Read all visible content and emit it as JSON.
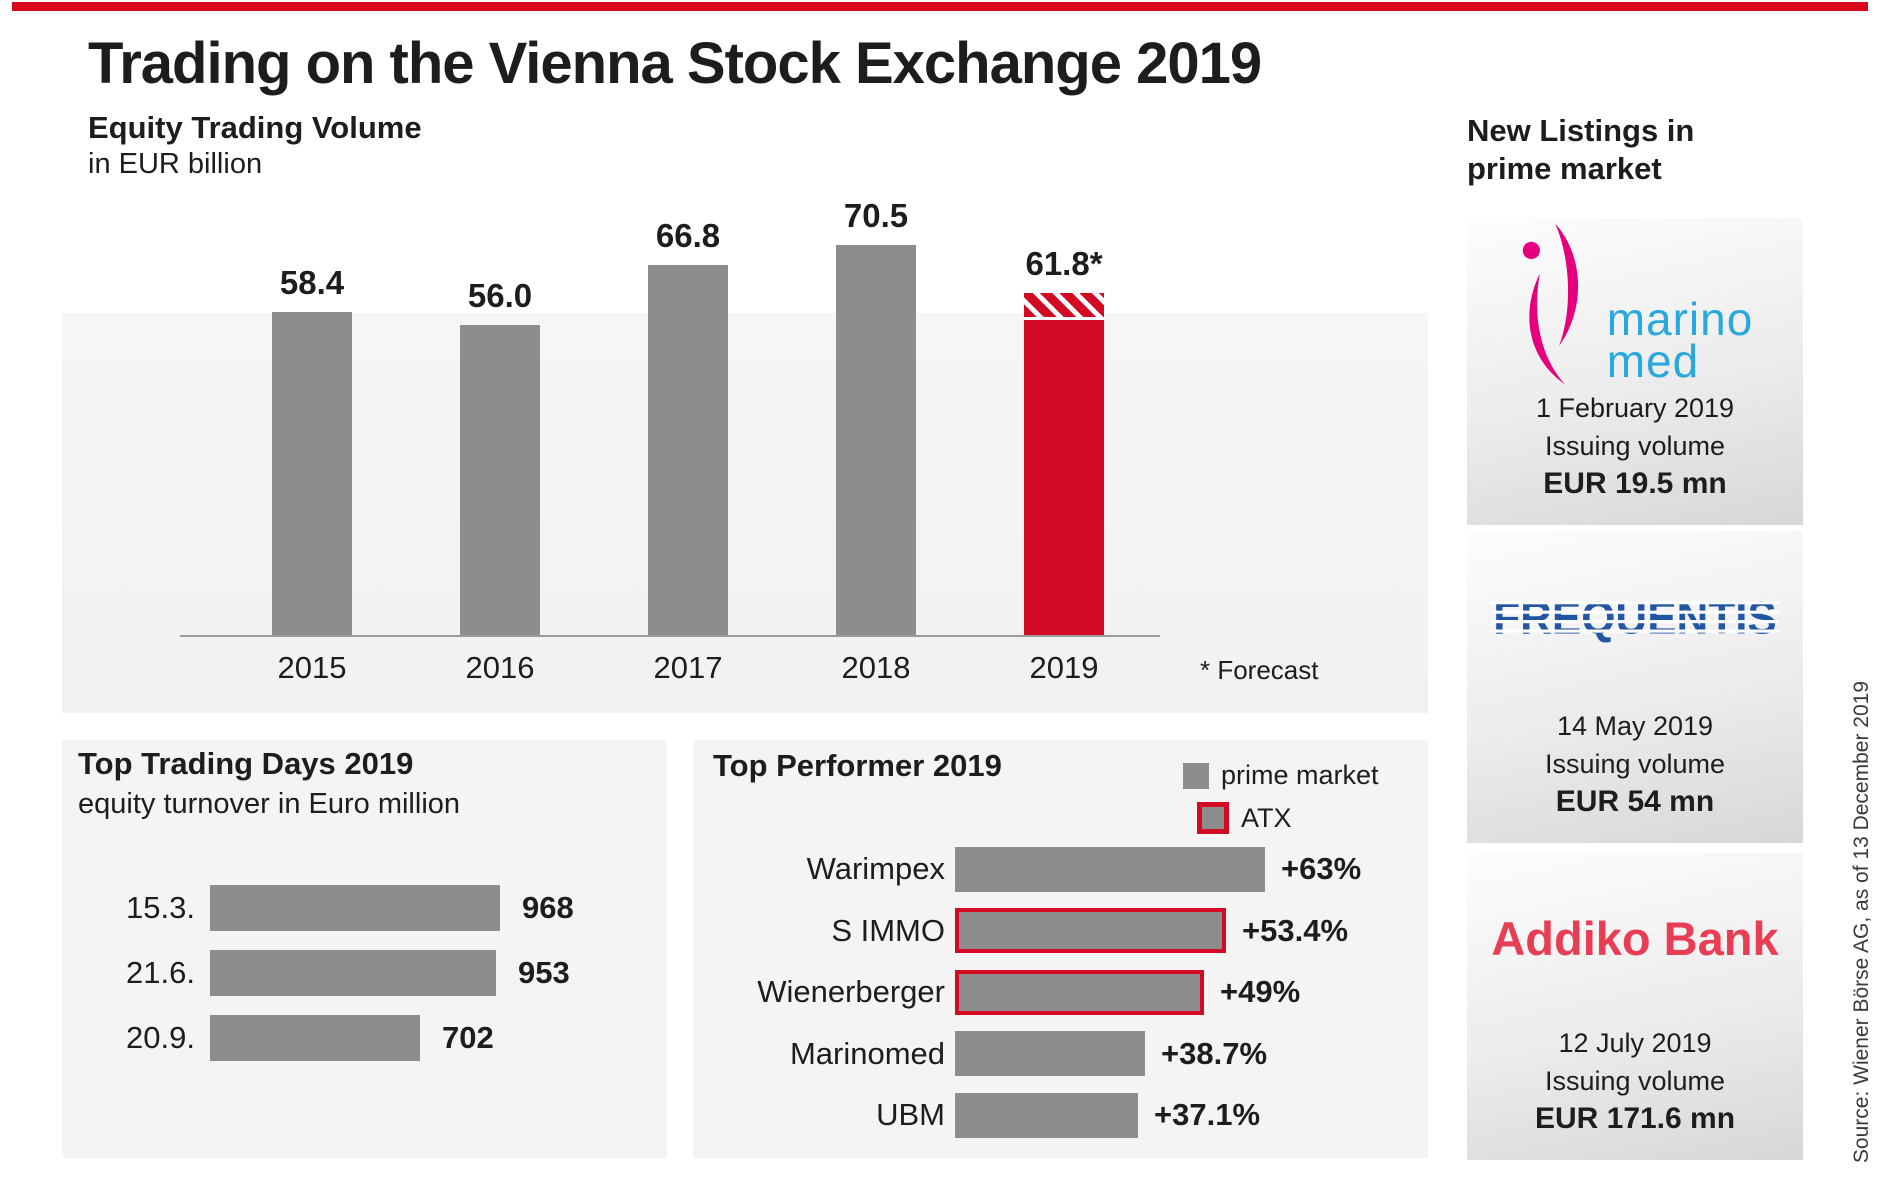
{
  "header": {
    "title": "Trading on the Vienna Stock Exchange 2019"
  },
  "colors": {
    "brand_red": "#d8091d",
    "forecast_bar_red": "#d20a23",
    "bar_gray": "#8d8d8d",
    "marinomed_magenta": "#e6007e",
    "marinomed_blue": "#29a8de",
    "frequentis_blue": "#2256a3",
    "addiko_red": "#e83e55"
  },
  "chart_data": [
    {
      "type": "bar",
      "title": "Equity Trading Volume",
      "subtitle": "in EUR billion",
      "categories": [
        "2015",
        "2016",
        "2017",
        "2018",
        "2019"
      ],
      "values": [
        58.4,
        56.0,
        66.8,
        70.5,
        61.8
      ],
      "value_labels": [
        "58.4",
        "56.0",
        "66.8",
        "70.5",
        "61.8*"
      ],
      "forecast_index": 4,
      "forecast_note": "* Forecast",
      "ylim": [
        0,
        70.5
      ],
      "grid": false,
      "legend_position": "none"
    },
    {
      "type": "bar",
      "orientation": "horizontal",
      "title": "Top Trading Days 2019",
      "subtitle": "equity turnover in Euro million",
      "categories": [
        "15.3.",
        "21.6.",
        "20.9."
      ],
      "values": [
        968,
        953,
        702
      ],
      "value_labels": [
        "968",
        "953",
        "702"
      ],
      "xlim": [
        0,
        968
      ],
      "grid": false
    },
    {
      "type": "bar",
      "orientation": "horizontal",
      "title": "Top Performer 2019",
      "categories": [
        "Warimpex",
        "S IMMO",
        "Wienerberger",
        "Marinomed",
        "UBM"
      ],
      "values": [
        63,
        53.4,
        49,
        38.7,
        37.1
      ],
      "value_labels": [
        "+63%",
        "+53.4%",
        "+49%",
        "+38.7%",
        "+37.1%"
      ],
      "atx_flags": [
        false,
        true,
        true,
        false,
        false
      ],
      "legend": [
        {
          "label": "prime market",
          "style": "gray"
        },
        {
          "label": "ATX",
          "style": "gray-red-border"
        }
      ],
      "xlim": [
        0,
        63
      ],
      "grid": false
    }
  ],
  "sidebar": {
    "heading_line1": "New Listings in",
    "heading_line2": "prime market",
    "listings": [
      {
        "company": "Marinomed",
        "logo_line1": "marino",
        "logo_line2": "med",
        "date": "1 February 2019",
        "issuing_label": "Issuing volume",
        "volume": "EUR 19.5 mn"
      },
      {
        "company": "Frequentis",
        "logo_text": "FREQUENTIS",
        "date": "14 May 2019",
        "issuing_label": "Issuing volume",
        "volume": "EUR 54 mn"
      },
      {
        "company": "Addiko Bank",
        "logo_text": "Addiko Bank",
        "date": "12 July 2019",
        "issuing_label": "Issuing volume",
        "volume": "EUR 171.6 mn"
      }
    ],
    "source": "Source: Wiener Börse AG, as of 13 December 2019"
  }
}
